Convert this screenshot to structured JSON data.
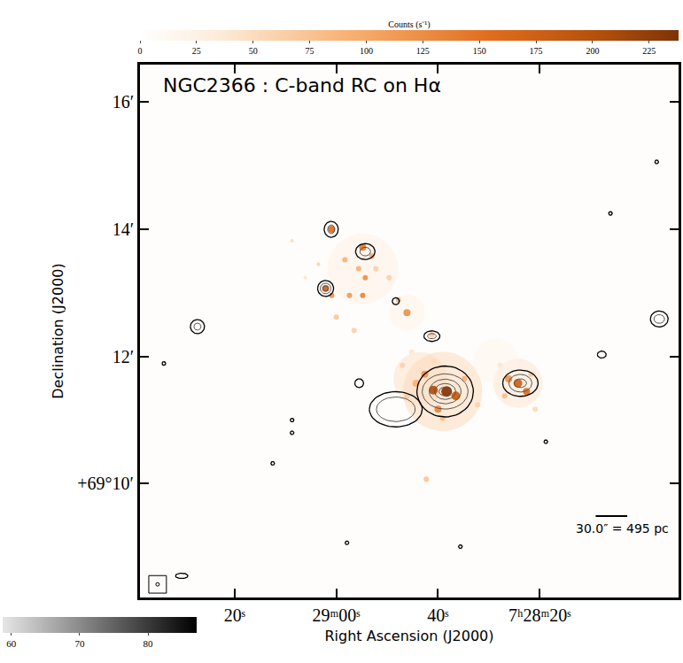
{
  "chart_data": {
    "type": "image_contour",
    "title": "NGC2366 : C-band RC on Hα",
    "x_label": "Right Ascension (J2000)",
    "y_label": "Declination (J2000)",
    "xlim": [
      26978.6,
      26872.7
    ],
    "ylim": [
      8.21,
      16.59
    ],
    "xticks": [
      {
        "value": 26960,
        "label": "20ˢ"
      },
      {
        "value": 26940,
        "label": "29ᵐ00ˢ"
      },
      {
        "value": 26920,
        "label": "40ˢ"
      },
      {
        "value": 26900,
        "label": "7ʰ28ᵐ20ˢ"
      }
    ],
    "yticks": [
      {
        "value": 10,
        "label": "+69°10′"
      },
      {
        "value": 12,
        "label": "12′"
      },
      {
        "value": 14,
        "label": "14′"
      },
      {
        "value": 16,
        "label": "16′"
      }
    ],
    "grid": false,
    "halpha": {
      "x": [
        26919.1,
        26923.5,
        26904.3,
        26934.8,
        26926.1,
        26908.7,
        26918.3,
        26920.9,
        26916.5,
        26922.6,
        26920.0,
        26924.3,
        26914.8,
        26926.1,
        26919.1,
        26912.2,
        26927.0,
        26920.9,
        26904.3,
        26902.6,
        26906.1,
        26901.7,
        26906.9,
        26900.9,
        26907.8,
        26940.9,
        26942.1,
        26940.9,
        26934.8,
        26933.0,
        26934.3,
        26935.6,
        26932.2,
        26937.4,
        26934.8,
        26938.3,
        26929.6,
        26927.8,
        26926.1,
        26921.2,
        26925.2,
        26936.5,
        26940.0,
        26948.7,
        26943.5,
        26946.1,
        26922.3
      ],
      "y": [
        11.45,
        11.65,
        11.58,
        13.38,
        12.69,
        11.93,
        11.45,
        11.47,
        11.38,
        11.72,
        11.17,
        11.58,
        11.65,
        11.38,
        11.03,
        11.24,
        11.86,
        11.93,
        11.58,
        11.45,
        11.65,
        11.72,
        11.38,
        11.17,
        11.86,
        14.0,
        13.07,
        12.96,
        13.72,
        13.58,
        13.24,
        13.38,
        13.38,
        12.96,
        12.96,
        13.52,
        13.24,
        12.89,
        12.69,
        12.34,
        12.07,
        12.41,
        12.62,
        13.82,
        13.45,
        13.24,
        10.07
      ],
      "counts": [
        60,
        50,
        45,
        30,
        25,
        20,
        230,
        200,
        180,
        120,
        130,
        90,
        90,
        70,
        80,
        60,
        60,
        50,
        170,
        150,
        120,
        70,
        80,
        50,
        40,
        150,
        170,
        120,
        140,
        100,
        120,
        90,
        60,
        110,
        130,
        90,
        60,
        80,
        120,
        70,
        40,
        60,
        70,
        50,
        60,
        40,
        70
      ],
      "radius_arcsec": [
        37,
        25,
        23,
        33,
        17,
        21,
        5.0,
        4.1,
        4.1,
        3.3,
        3.3,
        3.3,
        2.5,
        2.5,
        2.5,
        2.5,
        2.5,
        2.5,
        4.1,
        3.3,
        3.3,
        2.5,
        2.5,
        2.5,
        2.5,
        3.3,
        3.3,
        2.5,
        3.3,
        2.5,
        2.5,
        2.5,
        2.5,
        2.5,
        2.5,
        2.5,
        2.5,
        2.5,
        3.3,
        2.5,
        2.5,
        2.5,
        2.5,
        1.7,
        1.7,
        1.7,
        2.5
      ]
    },
    "colorbar": {
      "title": "Counts (s⁻¹)",
      "range": [
        0,
        238
      ],
      "ticks": [
        0,
        25,
        50,
        75,
        100,
        125,
        150,
        175,
        200,
        225
      ]
    },
    "radio_colorbar": {
      "range": [
        58.7,
        87.1
      ],
      "ticks": [
        60,
        70,
        80
      ]
    },
    "radio_contours": [
      {
        "x": 26918.6,
        "y": 11.45,
        "rx_arcsec": [
          26.5,
          21.5,
          14.9,
          9.9,
          5.8
        ],
        "ry_arcsec": [
          24.0,
          16.6,
          11.6,
          7.5,
          4.1
        ]
      },
      {
        "x": 26903.8,
        "y": 11.58,
        "rx_arcsec": [
          16.6,
          10.8,
          5.8
        ],
        "ry_arcsec": [
          12.4,
          8.3,
          4.1
        ]
      },
      {
        "x": 26928.3,
        "y": 11.17,
        "rx_arcsec": [
          24.8,
          18.2
        ],
        "ry_arcsec": [
          16.6,
          11.6
        ]
      },
      {
        "x": 26921.2,
        "y": 12.32,
        "rx_arcsec": [
          7.5,
          4.1
        ],
        "ry_arcsec": [
          5.0,
          2.5
        ]
      },
      {
        "x": 26941.0,
        "y": 14.0,
        "rx_arcsec": [
          6.6,
          3.3
        ],
        "ry_arcsec": [
          7.5,
          4.1
        ]
      },
      {
        "x": 26934.3,
        "y": 13.65,
        "rx_arcsec": [
          9.1,
          5.0
        ],
        "ry_arcsec": [
          7.5,
          4.1
        ]
      },
      {
        "x": 26942.1,
        "y": 13.07,
        "rx_arcsec": [
          7.5,
          5.0,
          2.5
        ],
        "ry_arcsec": [
          7.5,
          5.0,
          2.5
        ]
      },
      {
        "x": 26967.3,
        "y": 12.47,
        "rx_arcsec": [
          6.6,
          3.3
        ],
        "ry_arcsec": [
          6.6,
          3.3
        ]
      },
      {
        "x": 26876.5,
        "y": 12.59,
        "rx_arcsec": [
          8.3,
          5.0
        ],
        "ry_arcsec": [
          7.5,
          4.1
        ]
      },
      {
        "x": 26887.8,
        "y": 12.03,
        "rx_arcsec": [
          4.1
        ],
        "ry_arcsec": [
          3.3
        ]
      },
      {
        "x": 26928.3,
        "y": 12.87,
        "rx_arcsec": [
          3.3
        ],
        "ry_arcsec": [
          3.3
        ]
      },
      {
        "x": 26935.5,
        "y": 11.58,
        "rx_arcsec": [
          4.1
        ],
        "ry_arcsec": [
          4.1
        ]
      },
      {
        "x": 26970.4,
        "y": 8.55,
        "rx_arcsec": [
          5.8
        ],
        "ry_arcsec": [
          2.5
        ]
      },
      {
        "x": 26973.9,
        "y": 11.89,
        "rx_arcsec": [
          1.7
        ],
        "ry_arcsec": [
          1.7
        ]
      },
      {
        "x": 26948.7,
        "y": 10.8,
        "rx_arcsec": [
          1.7
        ],
        "ry_arcsec": [
          1.7
        ]
      },
      {
        "x": 26948.7,
        "y": 11.0,
        "rx_arcsec": [
          1.7
        ],
        "ry_arcsec": [
          1.7
        ]
      },
      {
        "x": 26952.5,
        "y": 10.32,
        "rx_arcsec": [
          1.7
        ],
        "ry_arcsec": [
          1.7
        ]
      },
      {
        "x": 26877.0,
        "y": 15.06,
        "rx_arcsec": [
          1.7
        ],
        "ry_arcsec": [
          1.7
        ]
      },
      {
        "x": 26886.1,
        "y": 14.25,
        "rx_arcsec": [
          1.7
        ],
        "ry_arcsec": [
          1.7
        ]
      },
      {
        "x": 26937.9,
        "y": 9.07,
        "rx_arcsec": [
          1.7
        ],
        "ry_arcsec": [
          1.7
        ]
      },
      {
        "x": 26915.6,
        "y": 9.01,
        "rx_arcsec": [
          1.7
        ],
        "ry_arcsec": [
          1.7
        ]
      },
      {
        "x": 26898.8,
        "y": 10.66,
        "rx_arcsec": [
          1.7
        ],
        "ry_arcsec": [
          1.7
        ]
      }
    ],
    "scalebar": {
      "text": "30.0″ = 495 pc",
      "x": [
        26889.0,
        26882.8
      ],
      "y": 9.49
    }
  }
}
